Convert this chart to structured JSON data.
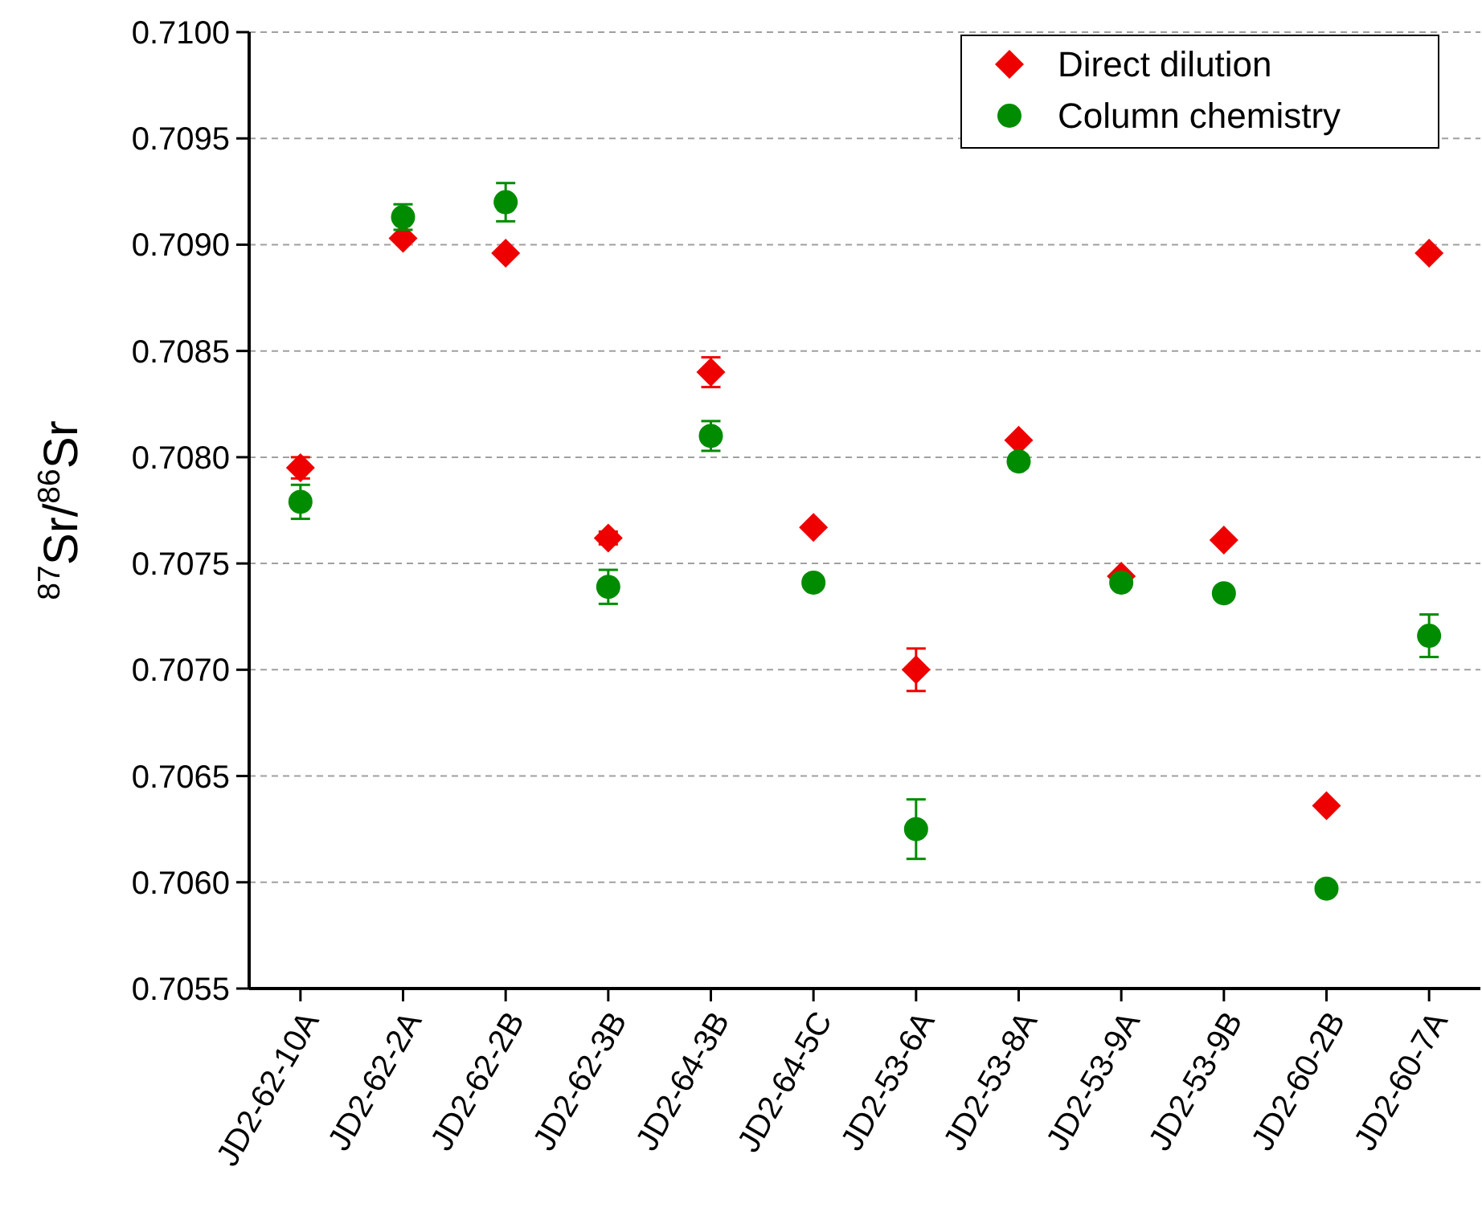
{
  "chart_data": {
    "type": "scatter",
    "ylabel": "$^{87}$Sr/$^{86}$Sr",
    "categories": [
      "JD2-62-10A",
      "JD2-62-2A",
      "JD2-62-2B",
      "JD2-62-3B",
      "JD2-64-3B",
      "JD2-64-5C",
      "JD2-53-6A",
      "JD2-53-8A",
      "JD2-53-9A",
      "JD2-53-9B",
      "JD2-60-2B",
      "JD2-60-7A"
    ],
    "series": [
      {
        "name": "Direct dilution",
        "color": "#ee0000",
        "marker": "diamond",
        "values": [
          0.70795,
          0.70903,
          0.70896,
          0.70762,
          0.7084,
          0.70767,
          0.707,
          0.70808,
          0.70744,
          0.70761,
          0.70636,
          0.70896
        ],
        "errors": [
          5e-05,
          null,
          null,
          3e-05,
          7e-05,
          null,
          0.0001,
          null,
          null,
          null,
          null,
          null
        ]
      },
      {
        "name": "Column chemistry",
        "color": "#008c00",
        "marker": "circle",
        "values": [
          0.70779,
          0.70913,
          0.7092,
          0.70739,
          0.7081,
          0.70741,
          0.70625,
          0.70798,
          0.70741,
          0.70736,
          0.70597,
          0.70716
        ],
        "errors": [
          8e-05,
          6e-05,
          9e-05,
          8e-05,
          7e-05,
          null,
          0.00014,
          3e-05,
          2e-05,
          null,
          null,
          0.0001
        ]
      }
    ],
    "ylim": [
      0.7055,
      0.71
    ],
    "yticks": [
      {
        "value": 0.7055,
        "label": "0.7055"
      },
      {
        "value": 0.706,
        "label": "0.7060"
      },
      {
        "value": 0.7065,
        "label": "0.7065"
      },
      {
        "value": 0.707,
        "label": "0.7070"
      },
      {
        "value": 0.7075,
        "label": "0.7075"
      },
      {
        "value": 0.708,
        "label": "0.7080"
      },
      {
        "value": 0.7085,
        "label": "0.7085"
      },
      {
        "value": 0.709,
        "label": "0.7090"
      },
      {
        "value": 0.7095,
        "label": "0.7095"
      },
      {
        "value": 0.71,
        "label": "0.7100"
      }
    ],
    "grid": "y",
    "legend": "top right"
  }
}
